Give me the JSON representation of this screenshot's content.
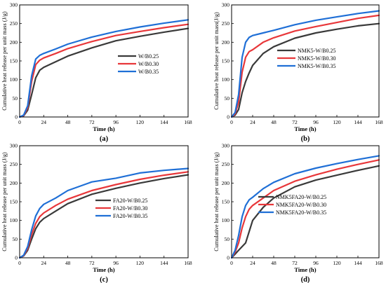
{
  "colors": {
    "black_series": "#3a3a3a",
    "red_series": "#e8373a",
    "blue_series": "#1f6fd6"
  },
  "chart_data": [
    {
      "type": "line",
      "panel_label": "(a)",
      "xlabel": "Time (h)",
      "ylabel": "Cumulative heat release per unit mass (J/g)",
      "xlim": [
        0,
        168
      ],
      "ylim": [
        0,
        300
      ],
      "xticks": [
        0,
        24,
        48,
        72,
        96,
        120,
        144,
        168
      ],
      "yticks": [
        0,
        50,
        100,
        150,
        200,
        250,
        300
      ],
      "grid": false,
      "legend_position": "middle-right",
      "x": [
        0,
        4,
        8,
        12,
        16,
        20,
        24,
        36,
        48,
        72,
        96,
        120,
        144,
        168
      ],
      "series": [
        {
          "name": "W/B0.25",
          "color": "#3a3a3a",
          "values": [
            0,
            3,
            18,
            60,
            105,
            125,
            133,
            148,
            163,
            185,
            204,
            216,
            227,
            237
          ]
        },
        {
          "name": "W/B0.30",
          "color": "#e8373a",
          "values": [
            0,
            4,
            25,
            95,
            140,
            152,
            158,
            170,
            183,
            202,
            218,
            229,
            239,
            248
          ]
        },
        {
          "name": "W/B0.35",
          "color": "#1f6fd6",
          "values": [
            0,
            5,
            30,
            110,
            155,
            165,
            170,
            182,
            195,
            214,
            229,
            241,
            251,
            260
          ]
        }
      ]
    },
    {
      "type": "line",
      "panel_label": "(b)",
      "xlabel": "Time (h)",
      "ylabel": "Cumulative heat release per unit mass(J/g)",
      "xlim": [
        0,
        168
      ],
      "ylim": [
        0,
        300
      ],
      "xticks": [
        0,
        24,
        48,
        72,
        96,
        120,
        144,
        168
      ],
      "yticks": [
        0,
        50,
        100,
        150,
        200,
        250,
        300
      ],
      "grid": false,
      "legend_position": "middle-right",
      "x": [
        0,
        4,
        8,
        12,
        16,
        20,
        24,
        36,
        48,
        72,
        96,
        120,
        144,
        168
      ],
      "series": [
        {
          "name": "NMK5-W/B0.25",
          "color": "#3a3a3a",
          "values": [
            0,
            5,
            20,
            65,
            95,
            118,
            138,
            170,
            188,
            211,
            225,
            235,
            244,
            250
          ]
        },
        {
          "name": "NMK5-W/B0.30",
          "color": "#e8373a",
          "values": [
            0,
            8,
            40,
            120,
            160,
            175,
            180,
            200,
            212,
            230,
            242,
            253,
            264,
            272
          ]
        },
        {
          "name": "NMK5-W/B0.35",
          "color": "#1f6fd6",
          "values": [
            0,
            12,
            60,
            160,
            200,
            213,
            218,
            225,
            232,
            247,
            259,
            268,
            277,
            284
          ]
        }
      ]
    },
    {
      "type": "line",
      "panel_label": "(c)",
      "xlabel": "Time (h)",
      "ylabel": "Cumulative heat release per unit mass (J/g)",
      "xlim": [
        0,
        168
      ],
      "ylim": [
        0,
        300
      ],
      "xticks": [
        0,
        24,
        48,
        72,
        96,
        120,
        144,
        168
      ],
      "yticks": [
        0,
        50,
        100,
        150,
        200,
        250,
        300
      ],
      "grid": false,
      "legend_position": "middle-right",
      "x": [
        0,
        4,
        8,
        12,
        16,
        20,
        24,
        36,
        48,
        72,
        96,
        120,
        144,
        168
      ],
      "series": [
        {
          "name": "FA20-W/B0.25",
          "color": "#3a3a3a",
          "values": [
            0,
            5,
            20,
            50,
            78,
            95,
            105,
            125,
            145,
            170,
            186,
            200,
            212,
            222
          ]
        },
        {
          "name": "FA20-W/B0.30",
          "color": "#e8373a",
          "values": [
            0,
            6,
            25,
            62,
            92,
            110,
            120,
            140,
            157,
            180,
            196,
            210,
            221,
            230
          ]
        },
        {
          "name": "FA20-W/B0.35",
          "color": "#1f6fd6",
          "values": [
            0,
            7,
            30,
            75,
            112,
            132,
            143,
            160,
            180,
            203,
            213,
            227,
            234,
            239
          ]
        }
      ]
    },
    {
      "type": "line",
      "panel_label": "(d)",
      "xlabel": "Time (h)",
      "ylabel": "Cumulative heat release per unit mass (J/g)",
      "xlim": [
        0,
        168
      ],
      "ylim": [
        0,
        300
      ],
      "xticks": [
        0,
        24,
        48,
        72,
        96,
        120,
        144,
        168
      ],
      "yticks": [
        0,
        50,
        100,
        150,
        200,
        250,
        300
      ],
      "grid": false,
      "legend_position": "middle-right",
      "x": [
        0,
        4,
        8,
        12,
        16,
        20,
        24,
        36,
        48,
        72,
        96,
        120,
        144,
        168
      ],
      "series": [
        {
          "name": "NMK5FA20-W/B0.25",
          "color": "#3a3a3a",
          "values": [
            0,
            10,
            20,
            30,
            40,
            70,
            100,
            135,
            160,
            190,
            208,
            221,
            234,
            246
          ]
        },
        {
          "name": "NMK5FA20-W/B0.30",
          "color": "#e8373a",
          "values": [
            0,
            15,
            40,
            80,
            110,
            130,
            140,
            160,
            180,
            205,
            222,
            237,
            250,
            262
          ]
        },
        {
          "name": "NMK5FA20-W/B0.35",
          "color": "#1f6fd6",
          "values": [
            0,
            20,
            60,
            110,
            140,
            155,
            162,
            185,
            202,
            225,
            240,
            252,
            263,
            273
          ]
        }
      ]
    }
  ]
}
